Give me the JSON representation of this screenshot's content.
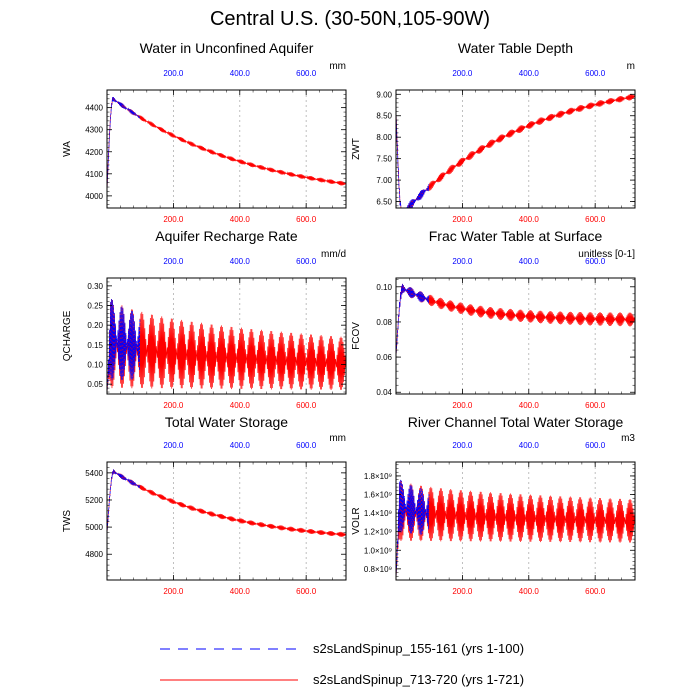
{
  "figure_title": "Central U.S. (30-50N,105-90W)",
  "legend": [
    {
      "label": "s2sLandSpinup_155-161 (yrs 1-100)",
      "color": "#0000ff",
      "style": "dashed"
    },
    {
      "label": "s2sLandSpinup_713-720 (yrs 1-721)",
      "color": "#ff0000",
      "style": "solid"
    }
  ],
  "chart_data": [
    {
      "type": "line",
      "title": "Water in Unconfined Aquifer",
      "ylabel": "WA",
      "units": "mm",
      "xlim": [
        0,
        720
      ],
      "ylim": [
        3945,
        4480
      ],
      "yticks": [
        4000,
        4100,
        4200,
        4300,
        4400
      ],
      "ytick_labels": [
        "4000",
        "4100",
        "4200",
        "4300",
        "4400"
      ],
      "x_bottom_ticks": [
        200,
        400,
        600
      ],
      "x_bottom_labels": [
        "200.0",
        "400.0",
        "600.0"
      ],
      "x_top_ticks": [
        200,
        400,
        600
      ],
      "x_top_labels": [
        "200.0",
        "400.0",
        "600.0"
      ],
      "shape": {
        "kind": "risefall",
        "start": 4020,
        "peak": 4440,
        "peak_x": 18,
        "end": 3965,
        "tau": 420
      },
      "series": [
        {
          "name": "s2sLandSpinup_155-161 (yrs 1-100)",
          "x_range": [
            0,
            100
          ],
          "color": "#0000ff",
          "style": "dashed",
          "amp_start": 12,
          "amp_end": 8
        },
        {
          "name": "s2sLandSpinup_713-720 (yrs 1-721)",
          "x_range": [
            0,
            721
          ],
          "color": "#ff0000",
          "style": "solid",
          "amp_start": 10,
          "amp_end": 10
        }
      ]
    },
    {
      "type": "line",
      "title": "Water Table Depth",
      "ylabel": "ZWT",
      "units": "m",
      "xlim": [
        0,
        720
      ],
      "ylim": [
        6.35,
        9.1
      ],
      "yticks": [
        6.5,
        7.0,
        7.5,
        8.0,
        8.5,
        9.0
      ],
      "ytick_labels": [
        "6.50",
        "7.00",
        "7.50",
        "8.00",
        "8.50",
        "9.00"
      ],
      "x_bottom_ticks": [
        200,
        400,
        600
      ],
      "x_bottom_labels": [
        "200.0",
        "400.0",
        "600.0"
      ],
      "x_top_ticks": [
        200,
        400,
        600
      ],
      "x_top_labels": [
        "200.0",
        "400.0",
        "600.0"
      ],
      "shape": {
        "kind": "dipgrow",
        "start": 8.6,
        "trough": 6.2,
        "trough_x": 18,
        "end": 8.95,
        "tau": 380
      },
      "series": [
        {
          "name": "s2sLandSpinup_155-161 (yrs 1-100)",
          "x_range": [
            0,
            100
          ],
          "color": "#0000ff",
          "style": "dashed",
          "amp_start": 0.12,
          "amp_end": 0.1
        },
        {
          "name": "s2sLandSpinup_713-720 (yrs 1-721)",
          "x_range": [
            0,
            721
          ],
          "color": "#ff0000",
          "style": "solid",
          "amp_start": 0.1,
          "amp_end": 0.07
        }
      ]
    },
    {
      "type": "line",
      "title": "Aquifer Recharge Rate",
      "ylabel": "QCHARGE",
      "units": "mm/d",
      "xlim": [
        0,
        720
      ],
      "ylim": [
        0.025,
        0.32
      ],
      "yticks": [
        0.05,
        0.1,
        0.15,
        0.2,
        0.25,
        0.3
      ],
      "ytick_labels": [
        "0.05",
        "0.10",
        "0.15",
        "0.20",
        "0.25",
        "0.30"
      ],
      "x_bottom_ticks": [
        200,
        400,
        600
      ],
      "x_bottom_labels": [
        "200.0",
        "400.0",
        "600.0"
      ],
      "x_top_ticks": [
        200,
        400,
        600
      ],
      "x_top_labels": [
        "200.0",
        "400.0",
        "600.0"
      ],
      "shape": {
        "kind": "osc",
        "base": 0.17,
        "base_end": 0.145,
        "peak_x": 10
      },
      "series": [
        {
          "name": "s2sLandSpinup_155-161 (yrs 1-100)",
          "x_range": [
            0,
            100
          ],
          "color": "#0000ff",
          "style": "dashed",
          "hi_start": 0.305,
          "hi_end": 0.23,
          "lo_start": 0.06,
          "lo_end": 0.06
        },
        {
          "name": "s2sLandSpinup_713-720 (yrs 1-721)",
          "x_range": [
            0,
            721
          ],
          "color": "#ff0000",
          "style": "solid",
          "hi_start": 0.3,
          "hi_end": 0.17,
          "lo_start": 0.04,
          "lo_end": 0.035
        }
      ]
    },
    {
      "type": "line",
      "title": "Frac Water Table at Surface",
      "ylabel": "FCOV",
      "units": "unitless [0-1]",
      "xlim": [
        0,
        720
      ],
      "ylim": [
        0.039,
        0.105
      ],
      "yticks": [
        0.04,
        0.06,
        0.08,
        0.1
      ],
      "ytick_labels": [
        "0.04",
        "0.06",
        "0.08",
        "0.10"
      ],
      "x_bottom_ticks": [
        200,
        400,
        600
      ],
      "x_bottom_labels": [
        "200.0",
        "400.0",
        "600.0"
      ],
      "x_top_ticks": [
        200,
        400,
        600
      ],
      "x_top_labels": [
        "200.0",
        "400.0",
        "600.0"
      ],
      "shape": {
        "kind": "risefall",
        "start": 0.06,
        "peak": 0.099,
        "peak_x": 20,
        "end": 0.081,
        "tau": 180
      },
      "series": [
        {
          "name": "s2sLandSpinup_155-161 (yrs 1-100)",
          "x_range": [
            0,
            100
          ],
          "color": "#0000ff",
          "style": "dashed",
          "amp_start": 0.003,
          "amp_end": 0.003
        },
        {
          "name": "s2sLandSpinup_713-720 (yrs 1-721)",
          "x_range": [
            0,
            721
          ],
          "color": "#ff0000",
          "style": "solid",
          "amp_start": 0.003,
          "amp_end": 0.004
        }
      ]
    },
    {
      "type": "line",
      "title": "Total Water Storage",
      "ylabel": "TWS",
      "units": "mm",
      "xlim": [
        0,
        720
      ],
      "ylim": [
        4610,
        5480
      ],
      "yticks": [
        4800,
        5000,
        5200,
        5400
      ],
      "ytick_labels": [
        "4800",
        "5000",
        "5200",
        "5400"
      ],
      "x_bottom_ticks": [
        200,
        400,
        600
      ],
      "x_bottom_labels": [
        "200.0",
        "400.0",
        "600.0"
      ],
      "x_top_ticks": [
        200,
        400,
        600
      ],
      "x_top_labels": [
        "200.0",
        "400.0",
        "600.0"
      ],
      "shape": {
        "kind": "risefall",
        "start": 4950,
        "peak": 5410,
        "peak_x": 20,
        "end": 4880,
        "tau": 330
      },
      "series": [
        {
          "name": "s2sLandSpinup_155-161 (yrs 1-100)",
          "x_range": [
            0,
            100
          ],
          "color": "#0000ff",
          "style": "dashed",
          "amp_start": 18,
          "amp_end": 15
        },
        {
          "name": "s2sLandSpinup_713-720 (yrs 1-721)",
          "x_range": [
            0,
            721
          ],
          "color": "#ff0000",
          "style": "solid",
          "amp_start": 18,
          "amp_end": 18
        }
      ]
    },
    {
      "type": "line",
      "title": "River Channel Total Water Storage",
      "ylabel": "VOLR",
      "units": "m3",
      "xlim": [
        0,
        720
      ],
      "ylim": [
        680000000.0,
        1950000000.0
      ],
      "yticks": [
        800000000.0,
        1000000000.0,
        1200000000.0,
        1400000000.0,
        1600000000.0,
        1800000000.0
      ],
      "ytick_labels": [
        "0.8×10⁹",
        "1.0×10⁹",
        "1.2×10⁹",
        "1.4×10⁹",
        "1.6×10⁹",
        "1.8×10⁹"
      ],
      "x_bottom_ticks": [
        200,
        400,
        600
      ],
      "x_bottom_labels": [
        "200.0",
        "400.0",
        "600.0"
      ],
      "x_top_ticks": [
        200,
        400,
        600
      ],
      "x_top_labels": [
        "200.0",
        "400.0",
        "600.0"
      ],
      "shape": {
        "kind": "osc",
        "base": 1400000000.0,
        "base_end": 1350000000.0,
        "peak_x": 10
      },
      "series": [
        {
          "name": "s2sLandSpinup_155-161 (yrs 1-100)",
          "x_range": [
            0,
            100
          ],
          "color": "#0000ff",
          "style": "dashed",
          "hi_start": 1870000000.0,
          "hi_end": 1650000000.0,
          "lo_start": 1200000000.0,
          "lo_end": 1150000000.0
        },
        {
          "name": "s2sLandSpinup_713-720 (yrs 1-721)",
          "x_range": [
            0,
            721
          ],
          "color": "#ff0000",
          "style": "solid",
          "hi_start": 1820000000.0,
          "hi_end": 1550000000.0,
          "lo_start": 1100000000.0,
          "lo_end": 1080000000.0
        }
      ]
    }
  ]
}
